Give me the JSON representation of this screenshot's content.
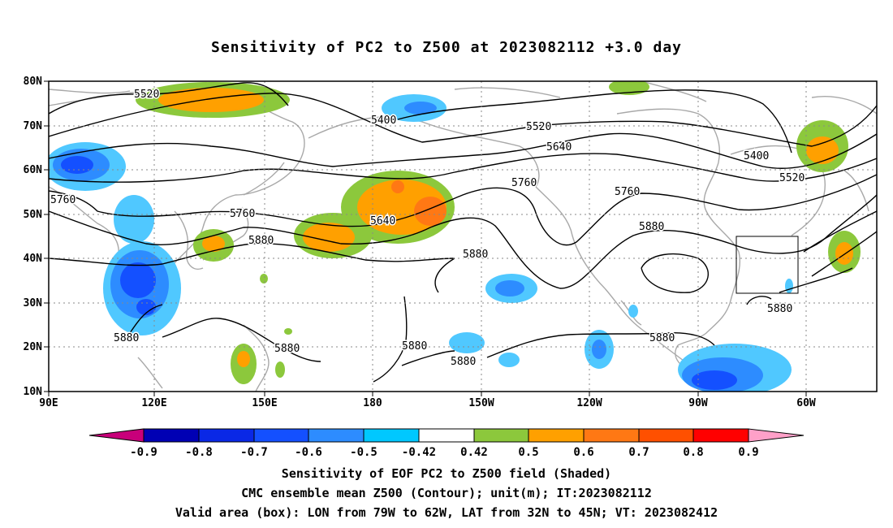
{
  "title": "Sensitivity of PC2 to Z500 at 2023082112 +3.0 day",
  "axes": {
    "x_ticks": [
      "90E",
      "120E",
      "150E",
      "180",
      "150W",
      "120W",
      "90W",
      "60W"
    ],
    "y_ticks": [
      "80N",
      "70N",
      "60N",
      "50N",
      "40N",
      "30N",
      "20N",
      "10N"
    ]
  },
  "contour_labels": [
    "5520",
    "5400",
    "5520",
    "5640",
    "5400",
    "5520",
    "5760",
    "5760",
    "5640",
    "5760",
    "5880",
    "5760",
    "5880",
    "5880",
    "5880",
    "5880",
    "5880",
    "5880",
    "5880",
    "5880"
  ],
  "colorbar": {
    "ticks": [
      "-0.9",
      "-0.8",
      "-0.7",
      "-0.6",
      "-0.5",
      "-0.42",
      "0.42",
      "0.5",
      "0.6",
      "0.7",
      "0.8",
      "0.9"
    ],
    "colors": [
      "#c8007a",
      "#0000b4",
      "#0a28e6",
      "#1450ff",
      "#2d8cff",
      "#50c8ff",
      "#00c8ff",
      "#ffffff",
      "#8cc83c",
      "#ffa000",
      "#ff7814",
      "#ff5000",
      "#ff0000",
      "#ffa0c8"
    ]
  },
  "valid_box": {
    "lon_from": "79W",
    "lon_to": "62W",
    "lat_from": "32N",
    "lat_to": "45N"
  },
  "captions": [
    "Sensitivity of EOF PC2 to Z500 field (Shaded)",
    "CMC ensemble mean Z500 (Contour); unit(m); IT:2023082112",
    "Valid area (box): LON from 79W to 62W, LAT from 32N to 45N; VT: 2023082412"
  ]
}
